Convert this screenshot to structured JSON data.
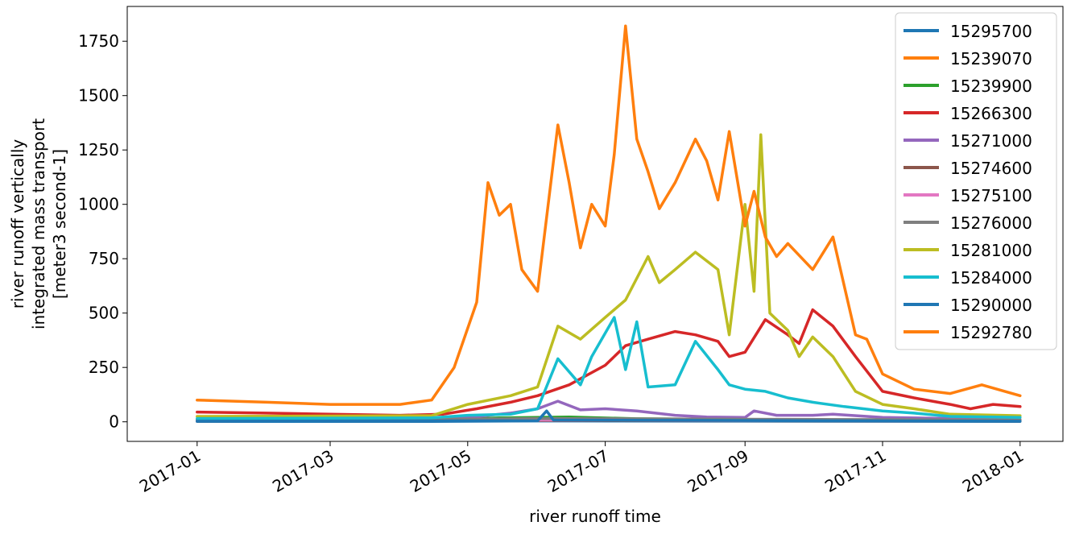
{
  "chart_data": {
    "type": "line",
    "xlabel": "river runoff time",
    "ylabel_lines": [
      "river runoff vertically",
      "integrated mass transport",
      "[meter3 second-1]"
    ],
    "xlim": [
      "2016-12-01",
      "2018-01-20"
    ],
    "ylim": [
      -90,
      1910
    ],
    "x_ticks": [
      {
        "label": "2017-01",
        "date": "2017-01-01"
      },
      {
        "label": "2017-03",
        "date": "2017-03-01"
      },
      {
        "label": "2017-05",
        "date": "2017-05-01"
      },
      {
        "label": "2017-07",
        "date": "2017-07-01"
      },
      {
        "label": "2017-09",
        "date": "2017-09-01"
      },
      {
        "label": "2017-11",
        "date": "2017-11-01"
      },
      {
        "label": "2018-01",
        "date": "2018-01-01"
      }
    ],
    "y_ticks": [
      0,
      250,
      500,
      750,
      1000,
      1250,
      1500,
      1750
    ],
    "legend_position": "top-right",
    "series": [
      {
        "name": "15295700",
        "color": "#1f77b4",
        "points": [
          [
            "2017-01-01",
            2
          ],
          [
            "2017-04-15",
            2
          ],
          [
            "2017-06-01",
            4
          ],
          [
            "2017-09-01",
            3
          ],
          [
            "2018-01-01",
            2
          ]
        ]
      },
      {
        "name": "15239070",
        "color": "#ff7f0e",
        "points": [
          [
            "2017-01-01",
            5
          ],
          [
            "2017-04-15",
            6
          ],
          [
            "2017-06-10",
            12
          ],
          [
            "2017-08-01",
            10
          ],
          [
            "2017-10-01",
            8
          ],
          [
            "2018-01-01",
            4
          ]
        ]
      },
      {
        "name": "15239900",
        "color": "#2ca02c",
        "points": [
          [
            "2017-01-01",
            6
          ],
          [
            "2017-04-20",
            8
          ],
          [
            "2017-05-15",
            18
          ],
          [
            "2017-06-15",
            22
          ],
          [
            "2017-07-15",
            14
          ],
          [
            "2017-09-15",
            10
          ],
          [
            "2018-01-01",
            5
          ]
        ]
      },
      {
        "name": "15266300",
        "color": "#d62728",
        "points": [
          [
            "2017-01-01",
            45
          ],
          [
            "2017-02-01",
            40
          ],
          [
            "2017-03-01",
            35
          ],
          [
            "2017-04-01",
            30
          ],
          [
            "2017-04-20",
            35
          ],
          [
            "2017-05-05",
            60
          ],
          [
            "2017-05-20",
            90
          ],
          [
            "2017-06-01",
            120
          ],
          [
            "2017-06-15",
            170
          ],
          [
            "2017-07-01",
            260
          ],
          [
            "2017-07-10",
            350
          ],
          [
            "2017-07-20",
            380
          ],
          [
            "2017-08-01",
            415
          ],
          [
            "2017-08-10",
            400
          ],
          [
            "2017-08-20",
            370
          ],
          [
            "2017-08-25",
            300
          ],
          [
            "2017-09-01",
            320
          ],
          [
            "2017-09-10",
            470
          ],
          [
            "2017-09-20",
            400
          ],
          [
            "2017-09-25",
            360
          ],
          [
            "2017-10-01",
            515
          ],
          [
            "2017-10-10",
            440
          ],
          [
            "2017-10-20",
            300
          ],
          [
            "2017-11-01",
            140
          ],
          [
            "2017-11-15",
            110
          ],
          [
            "2017-12-01",
            80
          ],
          [
            "2017-12-10",
            60
          ],
          [
            "2017-12-20",
            80
          ],
          [
            "2018-01-01",
            70
          ]
        ]
      },
      {
        "name": "15271000",
        "color": "#9467bd",
        "points": [
          [
            "2017-01-01",
            10
          ],
          [
            "2017-05-01",
            20
          ],
          [
            "2017-05-20",
            40
          ],
          [
            "2017-06-01",
            60
          ],
          [
            "2017-06-10",
            95
          ],
          [
            "2017-06-20",
            55
          ],
          [
            "2017-07-01",
            60
          ],
          [
            "2017-07-15",
            50
          ],
          [
            "2017-08-01",
            30
          ],
          [
            "2017-08-15",
            22
          ],
          [
            "2017-09-01",
            20
          ],
          [
            "2017-09-05",
            50
          ],
          [
            "2017-09-15",
            30
          ],
          [
            "2017-10-01",
            30
          ],
          [
            "2017-10-10",
            35
          ],
          [
            "2017-11-01",
            20
          ],
          [
            "2018-01-01",
            10
          ]
        ]
      },
      {
        "name": "15274600",
        "color": "#8c564b",
        "points": [
          [
            "2017-01-01",
            3
          ],
          [
            "2017-06-01",
            6
          ],
          [
            "2017-09-01",
            5
          ],
          [
            "2018-01-01",
            3
          ]
        ]
      },
      {
        "name": "15275100",
        "color": "#e377c2",
        "points": [
          [
            "2017-01-01",
            4
          ],
          [
            "2017-06-01",
            8
          ],
          [
            "2017-09-01",
            6
          ],
          [
            "2018-01-01",
            4
          ]
        ]
      },
      {
        "name": "15276000",
        "color": "#7f7f7f",
        "points": [
          [
            "2017-01-01",
            8
          ],
          [
            "2017-04-01",
            10
          ],
          [
            "2017-06-01",
            15
          ],
          [
            "2017-09-01",
            12
          ],
          [
            "2018-01-01",
            8
          ]
        ]
      },
      {
        "name": "15281000",
        "color": "#bcbd22",
        "points": [
          [
            "2017-01-01",
            25
          ],
          [
            "2017-04-15",
            28
          ],
          [
            "2017-05-01",
            80
          ],
          [
            "2017-05-20",
            120
          ],
          [
            "2017-06-01",
            160
          ],
          [
            "2017-06-10",
            440
          ],
          [
            "2017-06-20",
            380
          ],
          [
            "2017-07-01",
            480
          ],
          [
            "2017-07-10",
            560
          ],
          [
            "2017-07-20",
            760
          ],
          [
            "2017-07-25",
            640
          ],
          [
            "2017-08-01",
            700
          ],
          [
            "2017-08-10",
            780
          ],
          [
            "2017-08-20",
            700
          ],
          [
            "2017-08-25",
            400
          ],
          [
            "2017-09-01",
            1000
          ],
          [
            "2017-09-05",
            600
          ],
          [
            "2017-09-08",
            1320
          ],
          [
            "2017-09-12",
            500
          ],
          [
            "2017-09-20",
            420
          ],
          [
            "2017-09-25",
            300
          ],
          [
            "2017-10-01",
            390
          ],
          [
            "2017-10-10",
            300
          ],
          [
            "2017-10-20",
            140
          ],
          [
            "2017-11-01",
            80
          ],
          [
            "2017-11-15",
            60
          ],
          [
            "2017-12-01",
            35
          ],
          [
            "2018-01-01",
            28
          ]
        ]
      },
      {
        "name": "15284000",
        "color": "#17becf",
        "points": [
          [
            "2017-01-01",
            15
          ],
          [
            "2017-04-15",
            18
          ],
          [
            "2017-05-01",
            30
          ],
          [
            "2017-05-20",
            35
          ],
          [
            "2017-06-01",
            60
          ],
          [
            "2017-06-10",
            290
          ],
          [
            "2017-06-20",
            170
          ],
          [
            "2017-06-25",
            300
          ],
          [
            "2017-07-05",
            480
          ],
          [
            "2017-07-10",
            240
          ],
          [
            "2017-07-15",
            460
          ],
          [
            "2017-07-20",
            160
          ],
          [
            "2017-08-01",
            170
          ],
          [
            "2017-08-10",
            370
          ],
          [
            "2017-08-20",
            240
          ],
          [
            "2017-08-25",
            170
          ],
          [
            "2017-09-01",
            150
          ],
          [
            "2017-09-10",
            140
          ],
          [
            "2017-09-20",
            110
          ],
          [
            "2017-10-01",
            90
          ],
          [
            "2017-10-15",
            70
          ],
          [
            "2017-11-01",
            50
          ],
          [
            "2017-11-15",
            40
          ],
          [
            "2017-12-01",
            25
          ],
          [
            "2018-01-01",
            20
          ]
        ]
      },
      {
        "name": "15290000",
        "color": "#1f77b4",
        "points": [
          [
            "2017-01-01",
            3
          ],
          [
            "2017-06-01",
            5
          ],
          [
            "2017-06-05",
            50
          ],
          [
            "2017-06-08",
            8
          ],
          [
            "2017-09-01",
            6
          ],
          [
            "2018-01-01",
            3
          ]
        ]
      },
      {
        "name": "15292780",
        "color": "#ff7f0e",
        "points": [
          [
            "2017-01-01",
            100
          ],
          [
            "2017-02-01",
            90
          ],
          [
            "2017-03-01",
            80
          ],
          [
            "2017-04-01",
            80
          ],
          [
            "2017-04-15",
            100
          ],
          [
            "2017-04-25",
            250
          ],
          [
            "2017-05-05",
            550
          ],
          [
            "2017-05-10",
            1100
          ],
          [
            "2017-05-15",
            950
          ],
          [
            "2017-05-20",
            1000
          ],
          [
            "2017-05-25",
            700
          ],
          [
            "2017-06-01",
            600
          ],
          [
            "2017-06-10",
            1365
          ],
          [
            "2017-06-15",
            1100
          ],
          [
            "2017-06-20",
            800
          ],
          [
            "2017-06-25",
            1000
          ],
          [
            "2017-07-01",
            900
          ],
          [
            "2017-07-05",
            1230
          ],
          [
            "2017-07-10",
            1820
          ],
          [
            "2017-07-15",
            1300
          ],
          [
            "2017-07-20",
            1150
          ],
          [
            "2017-07-25",
            980
          ],
          [
            "2017-08-01",
            1100
          ],
          [
            "2017-08-10",
            1300
          ],
          [
            "2017-08-15",
            1200
          ],
          [
            "2017-08-20",
            1020
          ],
          [
            "2017-08-25",
            1335
          ],
          [
            "2017-09-01",
            900
          ],
          [
            "2017-09-05",
            1060
          ],
          [
            "2017-09-10",
            850
          ],
          [
            "2017-09-15",
            760
          ],
          [
            "2017-09-20",
            820
          ],
          [
            "2017-10-01",
            700
          ],
          [
            "2017-10-10",
            850
          ],
          [
            "2017-10-20",
            400
          ],
          [
            "2017-10-25",
            380
          ],
          [
            "2017-11-01",
            220
          ],
          [
            "2017-11-15",
            150
          ],
          [
            "2017-12-01",
            130
          ],
          [
            "2017-12-15",
            170
          ],
          [
            "2018-01-01",
            120
          ]
        ]
      }
    ]
  }
}
